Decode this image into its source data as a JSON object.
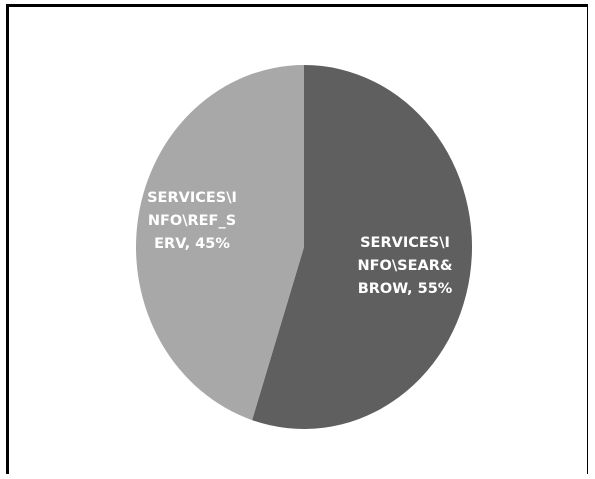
{
  "chart_data": {
    "type": "pie",
    "title": "",
    "slices": [
      {
        "label_lines": [
          "SERVICES\\I",
          "NFO\\SEAR&",
          "BROW, 55%"
        ],
        "value": 55,
        "color": "#5f5f5f"
      },
      {
        "label_lines": [
          "SERVICES\\I",
          "NFO\\REF_S",
          "ERV, 45%"
        ],
        "value": 45,
        "color": "#a8a8a8"
      }
    ],
    "start_angle_deg": 0,
    "direction": "clockwise",
    "legend": "none"
  }
}
